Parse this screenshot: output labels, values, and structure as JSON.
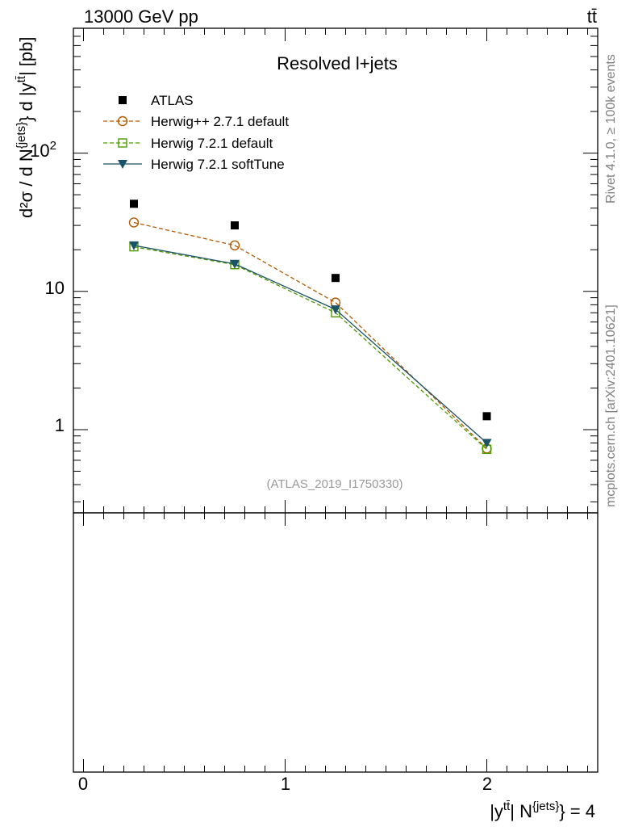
{
  "header": {
    "process": "13000 GeV pp",
    "final_state": "tt̄"
  },
  "side_labels": {
    "rivet": "Rivet 4.1.0, ≥ 100k events",
    "source": "mcplots.cern.ch [arXiv:2401.10621]"
  },
  "chart_data": {
    "type": "line",
    "title": "Resolved l+jets",
    "analysis_id": "(ATLAS_2019_I1750330)",
    "ylabel": {
      "main": "d²σ / d N",
      "sup_jets": "{jets}",
      "brace": "} d |y",
      "sup_tt": "tt̄",
      "unit": "| [pb]"
    },
    "xlabel": {
      "base": "|y",
      "sup_tt": "tt̄",
      "mid": "| N",
      "sup_jets": "{jets}",
      "end": "} = 4"
    },
    "yscale": "log",
    "ylim": [
      0.25,
      800
    ],
    "xlim": [
      -0.05,
      2.55
    ],
    "y_tick_labels": [
      {
        "value": 1,
        "label": "1"
      },
      {
        "value": 10,
        "label": "10"
      },
      {
        "value": 100,
        "label": "10",
        "exp": "2"
      }
    ],
    "x_tick_labels": [
      {
        "value": 0,
        "label": "0"
      },
      {
        "value": 1,
        "label": "1"
      },
      {
        "value": 2,
        "label": "2"
      }
    ],
    "x": [
      0.25,
      0.75,
      1.25,
      2.0
    ],
    "series": [
      {
        "name": "ATLAS",
        "style": "data",
        "marker": "square-filled",
        "color": "#000000",
        "values": [
          43,
          30,
          12.5,
          1.25
        ]
      },
      {
        "name": "Herwig++ 2.7.1 default",
        "style": "dashed",
        "marker": "circle-open",
        "color": "#b35900",
        "values": [
          31.5,
          21.5,
          8.3,
          0.73
        ]
      },
      {
        "name": "Herwig 7.2.1 default",
        "style": "dashed",
        "marker": "square-open",
        "color": "#4d9900",
        "values": [
          21.0,
          15.6,
          7.0,
          0.72
        ]
      },
      {
        "name": "Herwig 7.2.1 softTune",
        "style": "solid",
        "marker": "triangle-down-filled",
        "color": "#1a5266",
        "values": [
          21.5,
          15.8,
          7.4,
          0.8
        ]
      }
    ],
    "legend_position": "top-left"
  }
}
